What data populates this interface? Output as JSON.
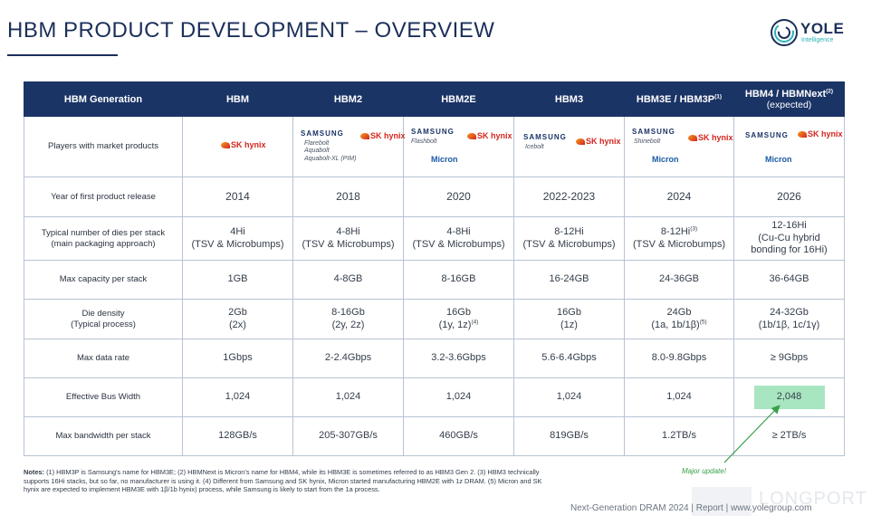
{
  "header": {
    "title": "HBM PRODUCT DEVELOPMENT – OVERVIEW",
    "brand": {
      "name": "YOLE",
      "sub": "Intelligence"
    }
  },
  "table": {
    "corner_label": "HBM Generation",
    "generations": [
      {
        "label": "HBM",
        "sup": "",
        "sub": ""
      },
      {
        "label": "HBM2",
        "sup": "",
        "sub": ""
      },
      {
        "label": "HBM2E",
        "sup": "",
        "sub": ""
      },
      {
        "label": "HBM3",
        "sup": "",
        "sub": ""
      },
      {
        "label": "HBM3E / HBM3P",
        "sup": "(1)",
        "sub": ""
      },
      {
        "label": "HBM4 / HBMNext",
        "sup": "(2)",
        "sub": "(expected)"
      }
    ],
    "players": {
      "label": "Players with market products",
      "cols": [
        {
          "samsung": "",
          "code_names": [],
          "sk": "SK hynix",
          "micron": ""
        },
        {
          "samsung": "SAMSUNG",
          "code_names": [
            "Flarebolt",
            "Aquabolt",
            "Aquabolt-XL (PIM)"
          ],
          "sk": "SK hynix",
          "micron": ""
        },
        {
          "samsung": "SAMSUNG",
          "code_names": [
            "Flashbolt"
          ],
          "sk": "SK hynix",
          "micron": "Micron"
        },
        {
          "samsung": "SAMSUNG",
          "code_names": [
            "Icebolt"
          ],
          "sk": "SK hynix",
          "micron": ""
        },
        {
          "samsung": "SAMSUNG",
          "code_names": [
            "Shinebolt"
          ],
          "sk": "SK hynix",
          "micron": "Micron"
        },
        {
          "samsung": "SAMSUNG",
          "code_names": [],
          "sk": "SK hynix",
          "micron": "Micron"
        }
      ]
    },
    "year": {
      "label": "Year of first product release",
      "values": [
        "2014",
        "2018",
        "2020",
        "2022-2023",
        "2024",
        "2026"
      ]
    },
    "dies": {
      "label_line1": "Typical number of dies per stack",
      "label_line2": "(main packaging approach)",
      "values": [
        {
          "line1": "4Hi",
          "line1_sup": "",
          "line2": "(TSV & Microbumps)",
          "line3": ""
        },
        {
          "line1": "4-8Hi",
          "line1_sup": "",
          "line2": "(TSV & Microbumps)",
          "line3": ""
        },
        {
          "line1": "4-8Hi",
          "line1_sup": "",
          "line2": "(TSV & Microbumps)",
          "line3": ""
        },
        {
          "line1": "8-12Hi",
          "line1_sup": "",
          "line2": "(TSV & Microbumps)",
          "line3": ""
        },
        {
          "line1": "8-12Hi",
          "line1_sup": "(3)",
          "line2": "(TSV & Microbumps)",
          "line3": ""
        },
        {
          "line1": "12-16Hi",
          "line1_sup": "",
          "line2": "(Cu-Cu hybrid",
          "line3": "bonding for 16Hi)"
        }
      ]
    },
    "capacity": {
      "label": "Max capacity per stack",
      "values": [
        "1GB",
        "4-8GB",
        "8-16GB",
        "16-24GB",
        "24-36GB",
        "36-64GB"
      ]
    },
    "density": {
      "label_line1": "Die density",
      "label_line2": "(Typical process)",
      "values": [
        {
          "line1": "2Gb",
          "line2": "(2x)",
          "sup": ""
        },
        {
          "line1": "8-16Gb",
          "line2": "(2y, 2z)",
          "sup": ""
        },
        {
          "line1": "16Gb",
          "line2": "(1y, 1z)",
          "sup": "(4)"
        },
        {
          "line1": "16Gb",
          "line2": "(1z)",
          "sup": ""
        },
        {
          "line1": "24Gb",
          "line2": "(1a, 1b/1β)",
          "sup": "(5)"
        },
        {
          "line1": "24-32Gb",
          "line2": "(1b/1β, 1c/1γ)",
          "sup": ""
        }
      ]
    },
    "data_rate": {
      "label": "Max data rate",
      "values": [
        "1Gbps",
        "2-2.4Gbps",
        "3.2-3.6Gbps",
        "5.6-6.4Gbps",
        "8.0-9.8Gbps",
        "≥ 9Gbps"
      ]
    },
    "bus_width": {
      "label": "Effective Bus Width",
      "values": [
        "1,024",
        "1,024",
        "1,024",
        "1,024",
        "1,024",
        "2,048"
      ],
      "highlight_color": "#a8e6c2"
    },
    "bandwidth": {
      "label": "Max bandwidth per stack",
      "values": [
        "128GB/s",
        "205-307GB/s",
        "460GB/s",
        "819GB/s",
        "1.2TB/s",
        "≥ 2TB/s"
      ]
    }
  },
  "annotation": {
    "text": "Major update!",
    "color": "#3aa04a"
  },
  "notes": {
    "heading": "Notes:",
    "text": "(1) HBM3P is Samsung's name for HBM3E; (2) HBMNext is Micron's name for HBM4, while its HBM3E is sometimes referred to as HBM3 Gen 2. (3) HBM3 technically supports 16Hi stacks, but so far, no manufacturer is using it. (4) Different from Samsung and SK hynix, Micron started manufacturing HBM2E with 1z DRAM. (5) Micron and SK hynix are expected to implement HBM3E with 1β/1b hynix) process, while Samsung is likely to start from the 1a process."
  },
  "footer": {
    "text": "Next-Generation DRAM 2024 | Report | www.yolegroup.com"
  },
  "watermark": {
    "text": "LONGPORT"
  },
  "colors": {
    "header_bg": "#1b3466",
    "title": "#1b2f5a",
    "border": "#b7c3d4",
    "accent": "#2bb3b9"
  }
}
